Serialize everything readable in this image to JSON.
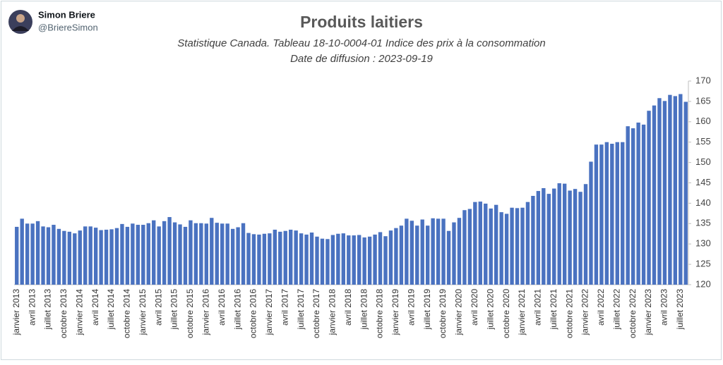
{
  "tweet": {
    "name": "Simon Briere",
    "handle": "@BriereSimon"
  },
  "chart_data": {
    "type": "bar",
    "title": "Produits laitiers",
    "subtitle": [
      "Statistique Canada. Tableau 18-10-0004-01  Indice des prix à la consommation",
      "Date de diffusion : 2023-09-19"
    ],
    "color": "#4a72c0",
    "categories": [
      "janvier 2013",
      null,
      null,
      "avril 2013",
      null,
      null,
      "juillet 2013",
      null,
      null,
      "octobre 2013",
      null,
      null,
      "janvier 2014",
      null,
      null,
      "avril 2014",
      null,
      null,
      "juillet 2014",
      null,
      null,
      "octobre 2014",
      null,
      null,
      "janvier 2015",
      null,
      null,
      "avril 2015",
      null,
      null,
      "juillet 2015",
      null,
      null,
      "octobre 2015",
      null,
      null,
      "janvier 2016",
      null,
      null,
      "avril 2016",
      null,
      null,
      "juillet 2016",
      null,
      null,
      "octobre 2016",
      null,
      null,
      "janvier 2017",
      null,
      null,
      "avril 2017",
      null,
      null,
      "juillet 2017",
      null,
      null,
      "octobre 2017",
      null,
      null,
      "janvier 2018",
      null,
      null,
      "avril 2018",
      null,
      null,
      "juillet 2018",
      null,
      null,
      "octobre 2018",
      null,
      null,
      "janvier 2019",
      null,
      null,
      "avril 2019",
      null,
      null,
      "juillet 2019",
      null,
      null,
      "octobre 2019",
      null,
      null,
      "janvier 2020",
      null,
      null,
      "avril 2020",
      null,
      null,
      "juillet 2020",
      null,
      null,
      "octobre 2020",
      null,
      null,
      "janvier 2021",
      null,
      null,
      "avril 2021",
      null,
      null,
      "juillet 2021",
      null,
      null,
      "octobre 2021",
      null,
      null,
      "janvier 2022",
      null,
      null,
      "avril 2022",
      null,
      null,
      "juillet 2022",
      null,
      null,
      "octobre 2022",
      null,
      null,
      "janvier 2023",
      null,
      null,
      "avril 2023",
      null,
      null,
      "juillet 2023",
      null
    ],
    "values": [
      134.2,
      136.2,
      135.0,
      135.0,
      135.6,
      134.3,
      134.1,
      134.7,
      133.7,
      133.2,
      133.0,
      132.6,
      133.3,
      134.3,
      134.3,
      134.0,
      133.4,
      133.5,
      133.6,
      133.9,
      134.9,
      134.2,
      135.0,
      134.7,
      134.7,
      135.1,
      135.8,
      134.3,
      135.6,
      136.6,
      135.3,
      134.8,
      134.2,
      135.8,
      135.1,
      135.1,
      135.0,
      136.4,
      135.2,
      135.0,
      135.0,
      133.7,
      134.1,
      135.1,
      132.7,
      132.4,
      132.3,
      132.5,
      132.6,
      133.5,
      133.0,
      133.2,
      133.5,
      133.3,
      132.6,
      132.3,
      132.8,
      131.8,
      131.3,
      131.2,
      132.2,
      132.5,
      132.6,
      132.1,
      132.1,
      132.2,
      131.6,
      131.8,
      132.3,
      132.9,
      131.9,
      133.3,
      133.9,
      134.5,
      136.2,
      135.7,
      134.5,
      136.0,
      134.5,
      136.3,
      136.2,
      136.2,
      133.2,
      135.3,
      136.4,
      138.3,
      138.6,
      140.3,
      140.4,
      139.9,
      138.7,
      139.6,
      137.8,
      137.4,
      138.9,
      138.8,
      138.9,
      140.3,
      141.8,
      143.0,
      143.7,
      142.3,
      143.6,
      144.9,
      144.8,
      143.1,
      143.5,
      142.8,
      144.7,
      150.2,
      154.4,
      154.4,
      155.0,
      154.6,
      155.0,
      155.0,
      158.9,
      158.4,
      159.8,
      159.3,
      162.7,
      164.0,
      165.8,
      165.1,
      166.6,
      166.3,
      166.8,
      164.9
    ],
    "ylim": [
      120,
      170
    ],
    "yticks": [
      120,
      125,
      130,
      135,
      140,
      145,
      150,
      155,
      160,
      165,
      170
    ],
    "yaxis_side": "right"
  }
}
